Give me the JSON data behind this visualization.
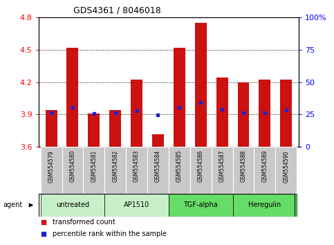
{
  "title": "GDS4361 / 8046018",
  "samples": [
    "GSM554579",
    "GSM554580",
    "GSM554581",
    "GSM554582",
    "GSM554583",
    "GSM554584",
    "GSM554585",
    "GSM554586",
    "GSM554587",
    "GSM554588",
    "GSM554589",
    "GSM554590"
  ],
  "red_values": [
    3.94,
    4.52,
    3.91,
    3.94,
    4.22,
    3.72,
    4.52,
    4.75,
    4.24,
    4.2,
    4.22,
    4.22
  ],
  "blue_values": [
    3.915,
    3.97,
    3.91,
    3.915,
    3.935,
    3.895,
    3.97,
    4.01,
    3.95,
    3.915,
    3.915,
    3.94
  ],
  "ylim_left": [
    3.6,
    4.8
  ],
  "ylim_right": [
    0,
    100
  ],
  "yticks_left": [
    3.6,
    3.9,
    4.2,
    4.5,
    4.8
  ],
  "yticks_right": [
    0,
    25,
    50,
    75,
    100
  ],
  "ytick_labels_right": [
    "0",
    "25",
    "50",
    "75",
    "100%"
  ],
  "groups": [
    {
      "label": "untreated",
      "start": 0,
      "end": 3,
      "color": "#c8f0c8"
    },
    {
      "label": "AP1510",
      "start": 3,
      "end": 6,
      "color": "#c8f0c8"
    },
    {
      "label": "TGF-alpha",
      "start": 6,
      "end": 9,
      "color": "#66dd66"
    },
    {
      "label": "Heregulin",
      "start": 9,
      "end": 12,
      "color": "#66dd66"
    }
  ],
  "bar_color": "#cc1111",
  "blue_dot_color": "#2222cc",
  "base_value": 3.6,
  "agent_label": "agent",
  "legend_red": "transformed count",
  "legend_blue": "percentile rank within the sample",
  "bg_plot": "#ffffff",
  "bg_label": "#c8c8c8"
}
